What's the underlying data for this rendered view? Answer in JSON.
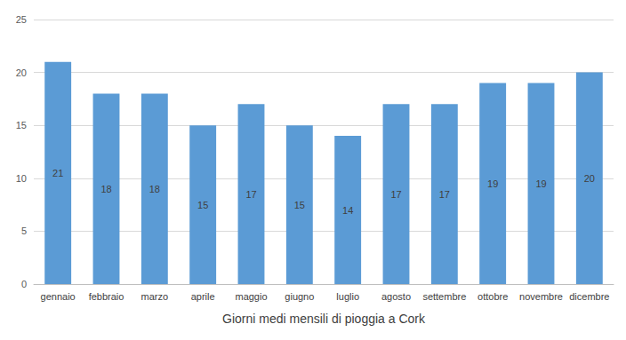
{
  "chart_data": {
    "type": "bar",
    "x_label": "Giorni medi mensili di pioggia a Cork",
    "categories": [
      "gennaio",
      "febbraio",
      "marzo",
      "aprile",
      "maggio",
      "giugno",
      "luglio",
      "agosto",
      "settembre",
      "ottobre",
      "novembre",
      "dicembre"
    ],
    "values": [
      21,
      18,
      18,
      15,
      17,
      15,
      14,
      17,
      17,
      19,
      19,
      20
    ],
    "color": "#5b9bd5",
    "ylim": [
      0,
      25
    ],
    "yticks": [
      0,
      5,
      10,
      15,
      20,
      25
    ],
    "grid": true,
    "data_labels": true
  }
}
